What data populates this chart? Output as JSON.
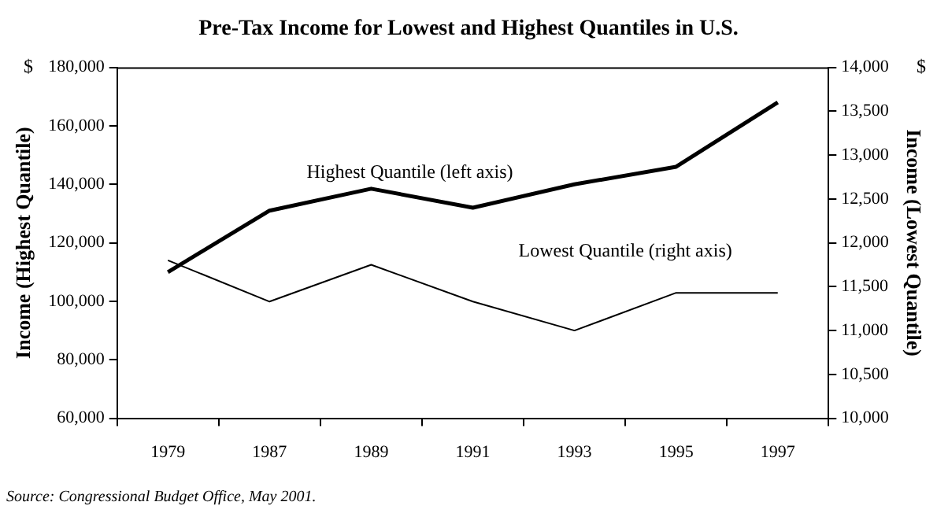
{
  "chart_data": {
    "type": "line",
    "title": "Pre-Tax Income for Lowest and Highest Quantiles in U.S.",
    "ylabel": "Income (Highest Quantile)",
    "y2label": "Income (Lowest Quantile)",
    "categories": [
      "1979",
      "1987",
      "1989",
      "1991",
      "1993",
      "1995",
      "1997"
    ],
    "series": [
      {
        "name": "Highest Quantile (left axis)",
        "color": "#000000",
        "values": [
          110000,
          131000,
          138500,
          132000,
          140000,
          146000,
          168000
        ]
      },
      {
        "name": "Lowest Quantile (right axis)",
        "color": "#000000",
        "axis": "y2",
        "values": [
          11800,
          11330,
          11750,
          11330,
          11000,
          11430,
          11430
        ]
      }
    ],
    "ylim": [
      60000,
      180000
    ],
    "yticks": [
      {
        "value": 60000,
        "label": "60,000"
      },
      {
        "value": 80000,
        "label": "80,000"
      },
      {
        "value": 100000,
        "label": "100,000"
      },
      {
        "value": 120000,
        "label": "120,000"
      },
      {
        "value": 140000,
        "label": "140,000"
      },
      {
        "value": 160000,
        "label": "160,000"
      },
      {
        "value": 180000,
        "label": "180,000"
      }
    ],
    "y2lim": [
      10000,
      14000
    ],
    "y2ticks": [
      {
        "value": 10000,
        "label": "10,000"
      },
      {
        "value": 10500,
        "label": "10,500"
      },
      {
        "value": 11000,
        "label": "11,000"
      },
      {
        "value": 11500,
        "label": "11,500"
      },
      {
        "value": 12000,
        "label": "12,000"
      },
      {
        "value": 12500,
        "label": "12,500"
      },
      {
        "value": 13000,
        "label": "13,000"
      },
      {
        "value": 13500,
        "label": "13,500"
      },
      {
        "value": 14000,
        "label": "14,000"
      }
    ],
    "grid": false,
    "legend": false,
    "marker": "none",
    "line_style": "solid",
    "annotations": [
      "$",
      "$",
      "Source: Congressional Budget Office, May 2001."
    ]
  }
}
